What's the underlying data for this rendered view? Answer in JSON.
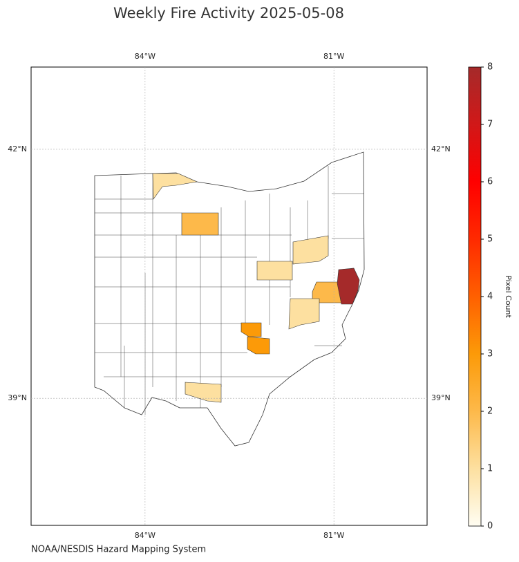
{
  "map": {
    "title": "Weekly Fire Activity 2025-05-08",
    "source": "NOAA/NESDIS Hazard Mapping System",
    "xlim": [
      -85.81,
      -79.52
    ],
    "ylim": [
      37.47,
      42.99
    ],
    "xticks": [
      {
        "value": -84,
        "label": "84°W"
      },
      {
        "value": -81,
        "label": "81°W"
      }
    ],
    "yticks": [
      {
        "value": 42,
        "label": "42°N"
      },
      {
        "value": 39,
        "label": "39°N"
      }
    ],
    "grid": true,
    "fire_values": [
      1,
      2,
      3,
      3,
      1,
      1,
      2,
      8,
      1,
      1
    ],
    "colorbar": {
      "label": "Pixel Count",
      "lim": [
        0,
        8
      ],
      "ticks": [
        0,
        1,
        2,
        3,
        4,
        5,
        6,
        7,
        8
      ]
    }
  }
}
